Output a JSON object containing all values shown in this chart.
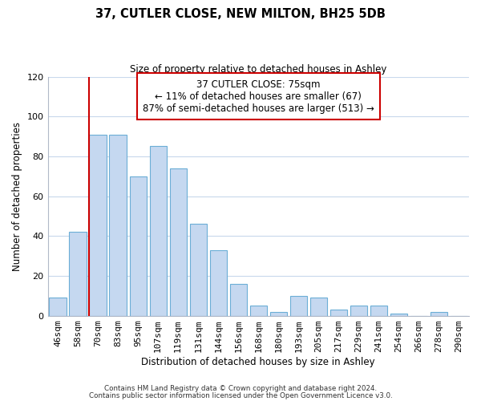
{
  "title": "37, CUTLER CLOSE, NEW MILTON, BH25 5DB",
  "subtitle": "Size of property relative to detached houses in Ashley",
  "xlabel": "Distribution of detached houses by size in Ashley",
  "ylabel": "Number of detached properties",
  "bins": [
    "46sqm",
    "58sqm",
    "70sqm",
    "83sqm",
    "95sqm",
    "107sqm",
    "119sqm",
    "131sqm",
    "144sqm",
    "156sqm",
    "168sqm",
    "180sqm",
    "193sqm",
    "205sqm",
    "217sqm",
    "229sqm",
    "241sqm",
    "254sqm",
    "266sqm",
    "278sqm",
    "290sqm"
  ],
  "values": [
    9,
    42,
    91,
    91,
    70,
    85,
    74,
    46,
    33,
    16,
    5,
    2,
    10,
    9,
    3,
    5,
    5,
    1,
    0,
    2,
    0
  ],
  "bar_color": "#c5d8f0",
  "bar_edge_color": "#6baed6",
  "vline_x_index": 2,
  "vline_color": "#cc0000",
  "ylim": [
    0,
    120
  ],
  "yticks": [
    0,
    20,
    40,
    60,
    80,
    100,
    120
  ],
  "annotation_line1": "37 CUTLER CLOSE: 75sqm",
  "annotation_line2": "← 11% of detached houses are smaller (67)",
  "annotation_line3": "87% of semi-detached houses are larger (513) →",
  "annotation_box_color": "#ffffff",
  "annotation_box_edge_color": "#cc0000",
  "footer1": "Contains HM Land Registry data © Crown copyright and database right 2024.",
  "footer2": "Contains public sector information licensed under the Open Government Licence v3.0."
}
